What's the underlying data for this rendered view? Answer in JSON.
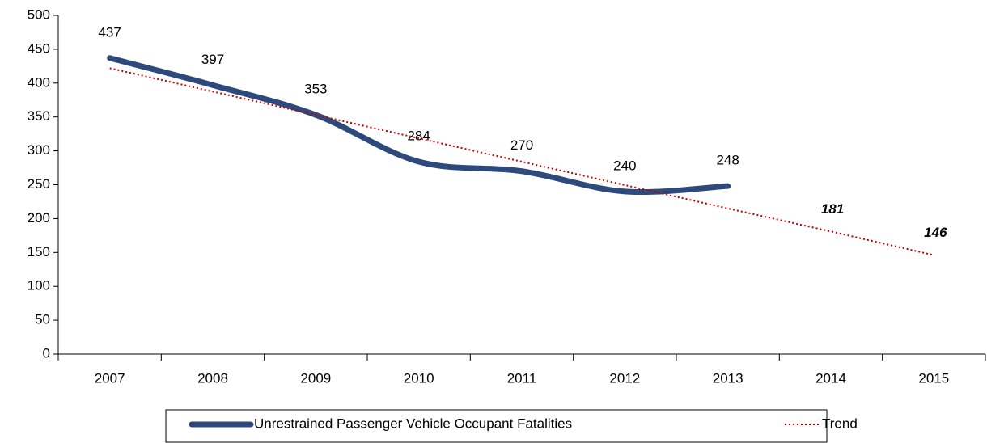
{
  "chart_data": {
    "type": "line",
    "categories": [
      "2007",
      "2008",
      "2009",
      "2010",
      "2011",
      "2012",
      "2013",
      "2014",
      "2015"
    ],
    "series": [
      {
        "name": "Unrestrained Passenger Vehicle Occupant Fatalities",
        "color": "#2e4a7d",
        "style": "solid",
        "values": [
          437,
          397,
          353,
          284,
          270,
          240,
          248,
          null,
          null
        ]
      },
      {
        "name": "Trend",
        "color": "#c00000",
        "style": "dotted",
        "values": [
          422,
          387.5,
          353,
          318.5,
          284,
          249.5,
          215,
          181,
          146
        ],
        "value_labels": [
          null,
          null,
          null,
          null,
          null,
          null,
          null,
          "181",
          "146"
        ]
      }
    ],
    "ylim": [
      0,
      500
    ],
    "yticks": [
      0,
      50,
      100,
      150,
      200,
      250,
      300,
      350,
      400,
      450,
      500
    ],
    "grid": false,
    "legend": "bottom"
  }
}
